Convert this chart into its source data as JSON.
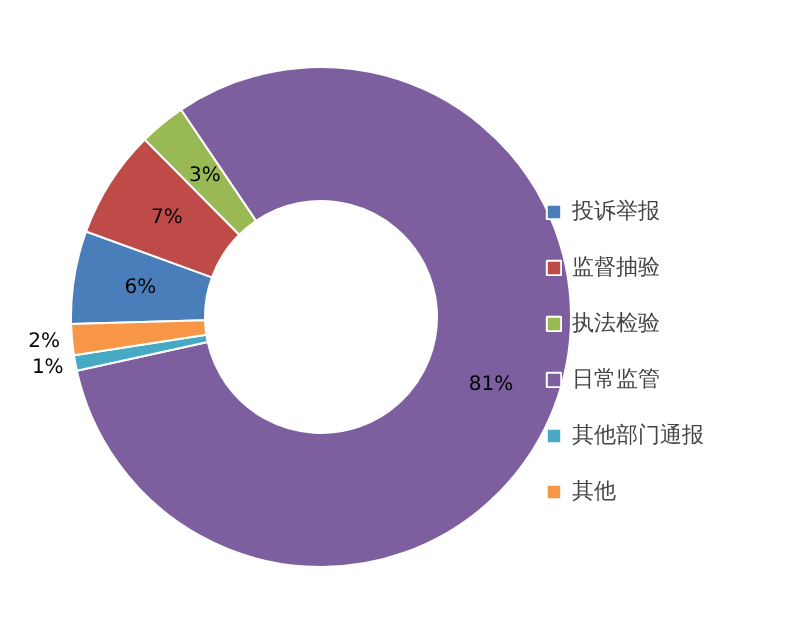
{
  "chart_data": {
    "type": "donut",
    "categories": [
      "投诉举报",
      "监督抽验",
      "执法检验",
      "日常监管",
      "其他部门通报",
      "其他"
    ],
    "values": [
      6,
      7,
      3,
      81,
      1,
      2
    ],
    "colors": [
      "#4a7ebb",
      "#be4b48",
      "#98b954",
      "#7d5fa0",
      "#46aac5",
      "#f79646"
    ],
    "value_labels": [
      "6%",
      "7%",
      "3%",
      "81%",
      "1%",
      "2%"
    ],
    "legend": "right"
  }
}
